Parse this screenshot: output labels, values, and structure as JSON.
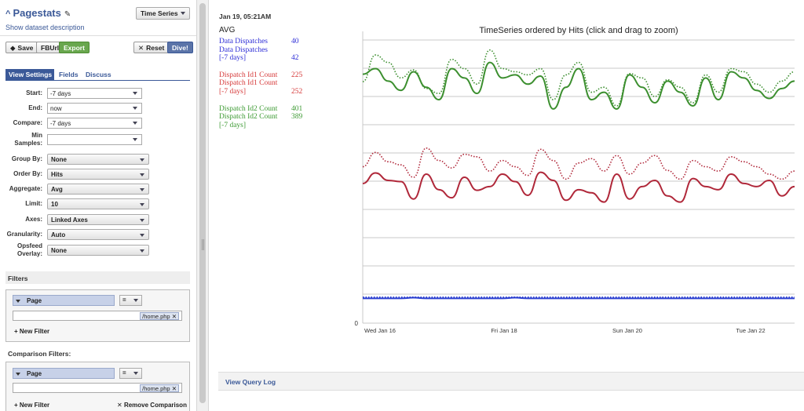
{
  "left": {
    "title": "Pagestats",
    "show_description": "Show dataset description",
    "view_type": "Time Series",
    "buttons": {
      "save": "Save",
      "fburl": "FBUrl",
      "export": "Export",
      "reset": "Reset",
      "dive": "Dive!"
    },
    "tabs": {
      "view_settings": "View Settings",
      "fields": "Fields",
      "discuss": "Discuss"
    },
    "form": {
      "start": {
        "label": "Start:",
        "value": "-7 days"
      },
      "end": {
        "label": "End:",
        "value": "now"
      },
      "compare": {
        "label": "Compare:",
        "value": "-7 days"
      },
      "min_samples": {
        "label_1": "Min",
        "label_2": "Samples:",
        "value": ""
      },
      "group_by": {
        "label": "Group By:",
        "value": "None"
      },
      "order_by": {
        "label": "Order By:",
        "value": "Hits"
      },
      "aggregate": {
        "label": "Aggregate:",
        "value": "Avg"
      },
      "limit": {
        "label": "Limit:",
        "value": "10"
      },
      "axes": {
        "label": "Axes:",
        "value": "Linked Axes"
      },
      "granularity": {
        "label": "Granularity:",
        "value": "Auto"
      },
      "opsfeed": {
        "label_1": "Opsfeed",
        "label_2": "Overlay:",
        "value": "None"
      }
    },
    "filters": {
      "heading": "Filters",
      "field": "Page",
      "op": "=",
      "value": "/home.php",
      "new_filter": "New Filter"
    },
    "comparison_filters": {
      "heading": "Comparison Filters:",
      "field": "Page",
      "op": "=",
      "value": "/home.php",
      "new_filter": "New Filter",
      "remove": "Remove Comparison"
    }
  },
  "right": {
    "timestamp": "Jan 19, 05:21AM",
    "aggregate": "AVG",
    "legend": [
      {
        "label": "Data Dispatches",
        "value": "40",
        "color": "#2b2bd6"
      },
      {
        "label": "Data Dispatches",
        "value": "",
        "color": "#2b2bd6"
      },
      {
        "label": "[-7 days]",
        "value": "42",
        "color": "#2b2bd6"
      },
      {
        "label": "",
        "value": "",
        "color": "#ffffff"
      },
      {
        "label": "Dispatch Id1 Count",
        "value": "225",
        "color": "#d63a3a"
      },
      {
        "label": "Dispatch Id1 Count",
        "value": "",
        "color": "#d63a3a"
      },
      {
        "label": "[-7 days]",
        "value": "252",
        "color": "#d63a3a"
      },
      {
        "label": "",
        "value": "",
        "color": "#ffffff"
      },
      {
        "label": "Dispatch Id2 Count",
        "value": "401",
        "color": "#3c9a32"
      },
      {
        "label": "Dispatch Id2 Count",
        "value": "389",
        "color": "#3c9a32"
      },
      {
        "label": "[-7 days]",
        "value": "",
        "color": "#3c9a32"
      }
    ],
    "view_query_log": "View Query Log"
  },
  "chart_data": {
    "type": "line",
    "title": "TimeSeries ordered by Hits (click and drag to zoom)",
    "x_tick_labels": [
      "Wed Jan 16",
      "Fri Jan 18",
      "Sun Jan 20",
      "Tue Jan 22"
    ],
    "y_tick_labels": [
      "0"
    ],
    "grid": true,
    "series": [
      {
        "name": "Data Dispatches",
        "style": "solid",
        "color": "#2b3fd0",
        "values": [
          40,
          40,
          40,
          40,
          41,
          40,
          40,
          40,
          40,
          40,
          40,
          40,
          41,
          40,
          40,
          40,
          40,
          40,
          40,
          40,
          40,
          40,
          40,
          40,
          40,
          40,
          40,
          40,
          40,
          40,
          40,
          40,
          40,
          40,
          40
        ]
      },
      {
        "name": "Data Dispatches [-7 days]",
        "style": "dotted",
        "color": "#2b3fd0",
        "values": [
          42,
          42,
          42,
          42,
          42,
          42,
          42,
          42,
          42,
          42,
          42,
          42,
          42,
          42,
          42,
          42,
          42,
          42,
          42,
          42,
          42,
          42,
          42,
          42,
          42,
          42,
          42,
          42,
          42,
          42,
          42,
          42,
          42,
          42,
          42
        ]
      },
      {
        "name": "Dispatch Id1 Count",
        "style": "solid",
        "color": "#b0283a",
        "values": [
          225,
          242,
          230,
          228,
          200,
          240,
          215,
          202,
          235,
          214,
          220,
          240,
          228,
          206,
          243,
          230,
          198,
          215,
          210,
          195,
          240,
          200,
          220,
          230,
          205,
          195,
          233,
          220,
          215,
          240,
          225,
          220,
          230,
          205,
          220
        ]
      },
      {
        "name": "Dispatch Id1 Count [-7 days]",
        "style": "dotted",
        "color": "#b0283a",
        "values": [
          252,
          275,
          260,
          255,
          235,
          282,
          262,
          250,
          272,
          268,
          245,
          262,
          252,
          238,
          280,
          262,
          232,
          258,
          265,
          245,
          270,
          240,
          258,
          270,
          246,
          232,
          262,
          252,
          245,
          268,
          260,
          252,
          240,
          232,
          245
        ]
      },
      {
        "name": "Dispatch Id2 Count",
        "style": "solid",
        "color": "#3c8f2f",
        "values": [
          401,
          410,
          390,
          375,
          405,
          380,
          360,
          410,
          395,
          370,
          420,
          395,
          400,
          385,
          398,
          345,
          380,
          410,
          360,
          372,
          345,
          400,
          380,
          355,
          390,
          372,
          350,
          395,
          360,
          405,
          395,
          375,
          362,
          378,
          390
        ]
      },
      {
        "name": "Dispatch Id2 Count [-7 days]",
        "style": "dotted",
        "color": "#3c8f2f",
        "values": [
          389,
          432,
          420,
          395,
          408,
          378,
          370,
          425,
          410,
          385,
          440,
          410,
          405,
          400,
          410,
          360,
          400,
          420,
          372,
          380,
          350,
          402,
          395,
          365,
          392,
          380,
          355,
          400,
          372,
          410,
          405,
          385,
          372,
          390,
          405
        ]
      }
    ]
  }
}
